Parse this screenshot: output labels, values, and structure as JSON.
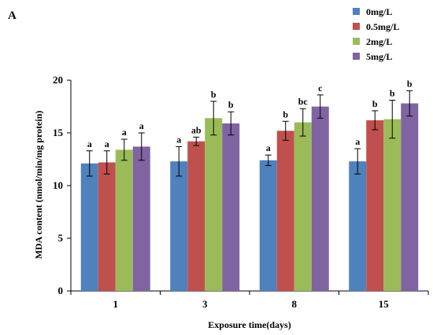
{
  "chart_data": {
    "type": "bar",
    "panel_label": "A",
    "xlabel": "Exposure time(days)",
    "ylabel": "MDA content (nmol/min/mg protein)",
    "categories": [
      "1",
      "3",
      "8",
      "15"
    ],
    "ylim": [
      0,
      20
    ],
    "yticks": [
      0,
      5,
      10,
      15,
      20
    ],
    "grid": false,
    "legend_position": "top-right",
    "series": [
      {
        "name": "0mg/L",
        "color": "#4f81bd",
        "values": [
          12.1,
          12.3,
          12.4,
          12.3
        ],
        "errors": [
          1.2,
          1.4,
          0.5,
          1.2
        ],
        "labels": [
          "a",
          "a",
          "a",
          "a"
        ]
      },
      {
        "name": "0.5mg/L",
        "color": "#c0504d",
        "values": [
          12.2,
          14.2,
          15.2,
          16.2
        ],
        "errors": [
          1.1,
          0.4,
          0.9,
          0.9
        ],
        "labels": [
          "a",
          "ab",
          "b",
          "b"
        ]
      },
      {
        "name": "2mg/L",
        "color": "#9bbb59",
        "values": [
          13.4,
          16.4,
          16.0,
          16.3
        ],
        "errors": [
          1.0,
          1.6,
          1.3,
          1.8
        ],
        "labels": [
          "a",
          "b",
          "bc",
          "b"
        ]
      },
      {
        "name": "5mg/L",
        "color": "#8064a2",
        "values": [
          13.7,
          15.9,
          17.5,
          17.8
        ],
        "errors": [
          1.3,
          1.1,
          1.1,
          1.2
        ],
        "labels": [
          "a",
          "b",
          "c",
          "b"
        ]
      }
    ]
  }
}
